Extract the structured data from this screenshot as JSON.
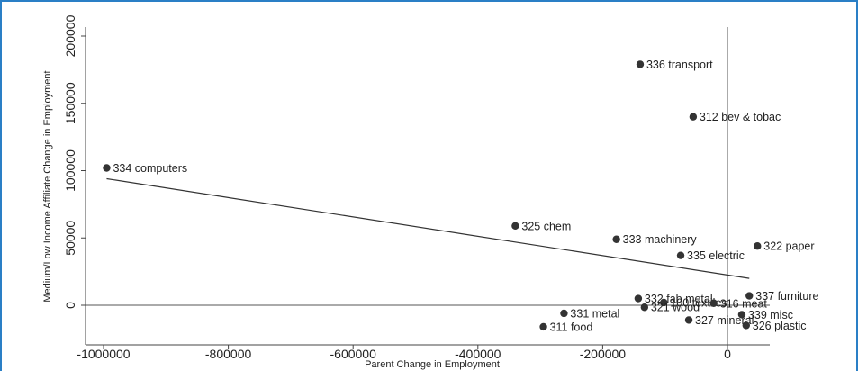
{
  "chart_data": {
    "type": "scatter",
    "xlabel": "Parent Change in Employment",
    "ylabel": "Medium/Low Income Affiliate Change in Employment",
    "xlim": [
      -1020000,
      60000
    ],
    "ylim": [
      -30000,
      205000
    ],
    "x_ticks": [
      -1000000,
      -800000,
      -600000,
      -400000,
      -200000,
      0
    ],
    "x_tick_labels": [
      "-1000000",
      "-800000",
      "-600000",
      "-400000",
      "-200000",
      "0"
    ],
    "y_ticks": [
      0,
      50000,
      100000,
      150000,
      200000
    ],
    "y_tick_labels": [
      "0",
      "50000",
      "100000",
      "150000",
      "200000"
    ],
    "points": [
      {
        "label": "336 transport",
        "x": -140000,
        "y": 179000
      },
      {
        "label": "312 bev & tobac",
        "x": -55000,
        "y": 140000
      },
      {
        "label": "334 computers",
        "x": -995000,
        "y": 102000
      },
      {
        "label": "325 chem",
        "x": -340000,
        "y": 59000
      },
      {
        "label": "333 machinery",
        "x": -178000,
        "y": 49000
      },
      {
        "label": "322 paper",
        "x": 48000,
        "y": 44000
      },
      {
        "label": "335 electric",
        "x": -75000,
        "y": 37000
      },
      {
        "label": "332 fab metal",
        "x": -143000,
        "y": 5000
      },
      {
        "label": "100 textiles",
        "x": -102000,
        "y": 2000
      },
      {
        "label": "316 meat",
        "x": -22000,
        "y": 1500
      },
      {
        "label": "337 furniture",
        "x": 35000,
        "y": 7000
      },
      {
        "label": "321 wood",
        "x": -133000,
        "y": -1500
      },
      {
        "label": "331 metal",
        "x": -262000,
        "y": -6000
      },
      {
        "label": "339 misc",
        "x": 23000,
        "y": -7000
      },
      {
        "label": "311 food",
        "x": -295000,
        "y": -16000
      },
      {
        "label": "327 mineral",
        "x": -62000,
        "y": -11000
      },
      {
        "label": "326 plastic",
        "x": 30000,
        "y": -15000
      }
    ],
    "fit_line": {
      "x": [
        -995000,
        35000
      ],
      "y": [
        94000,
        20000
      ]
    },
    "reference_lines": {
      "x": 0,
      "y": 0
    },
    "grid": false,
    "legend": "none",
    "colors": {
      "marker": "#333333",
      "line": "#333333",
      "frame": "#2a7fc6"
    }
  }
}
